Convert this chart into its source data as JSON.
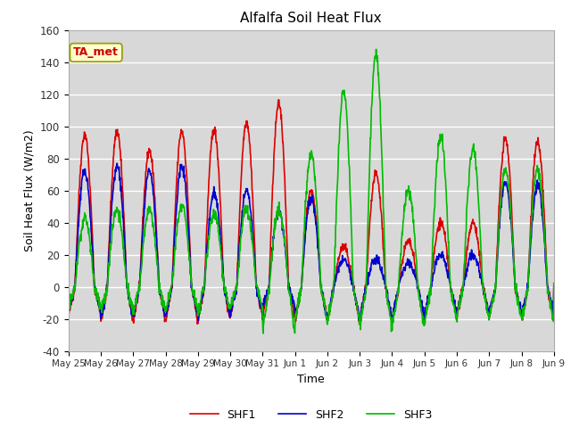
{
  "title": "Alfalfa Soil Heat Flux",
  "ylabel": "Soil Heat Flux (W/m2)",
  "xlabel": "Time",
  "ylim": [
    -40,
    160
  ],
  "yticks": [
    -40,
    -20,
    0,
    20,
    40,
    60,
    80,
    100,
    120,
    140,
    160
  ],
  "xtick_labels": [
    "May 25",
    "May 26",
    "May 27",
    "May 28",
    "May 29",
    "May 30",
    "May 31",
    "Jun 1",
    "Jun 2",
    "Jun 3",
    "Jun 4",
    "Jun 5",
    "Jun 6",
    "Jun 7",
    "Jun 8",
    "Jun 9"
  ],
  "colors": {
    "SHF1": "#dd0000",
    "SHF2": "#0000cc",
    "SHF3": "#00bb00"
  },
  "linewidth": 1.2,
  "fig_bg": "#ffffff",
  "plot_bg": "#d8d8d8",
  "grid_color": "#ffffff",
  "annotation_text": "TA_met",
  "annotation_color": "#cc0000",
  "annotation_bg": "#ffffcc",
  "annotation_border": "#999900",
  "peaks1": [
    95,
    97,
    85,
    97,
    98,
    103,
    114,
    60,
    25,
    70,
    28,
    40,
    40,
    92,
    90
  ],
  "peaks2": [
    72,
    75,
    72,
    75,
    58,
    60,
    47,
    55,
    17,
    17,
    14,
    20,
    20,
    65,
    63
  ],
  "peaks3": [
    42,
    48,
    48,
    50,
    46,
    48,
    47,
    83,
    122,
    144,
    60,
    93,
    86,
    73,
    73
  ],
  "night1": [
    -18,
    -22,
    -22,
    -22,
    -22,
    -18,
    -18,
    -22,
    -22,
    -22,
    -22,
    -18,
    -18,
    -18,
    -20
  ],
  "night2": [
    -15,
    -20,
    -18,
    -18,
    -18,
    -16,
    -12,
    -20,
    -20,
    -20,
    -20,
    -16,
    -16,
    -16,
    -18
  ],
  "night3": [
    -12,
    -15,
    -15,
    -15,
    -15,
    -12,
    -28,
    -20,
    -22,
    -26,
    -26,
    -22,
    -20,
    -20,
    -22
  ]
}
